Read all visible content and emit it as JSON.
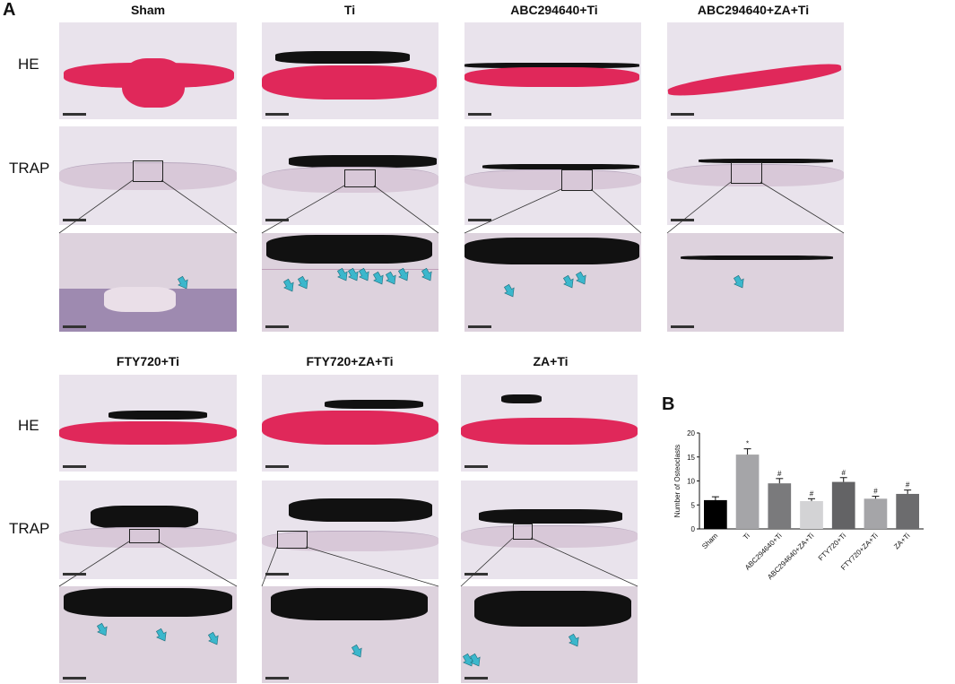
{
  "panel_a_letter": "A",
  "panel_b_letter": "B",
  "top_row_titles": [
    "Sham",
    "Ti",
    "ABC294640+Ti",
    "ABC294640+ZA+Ti"
  ],
  "bottom_row_titles": [
    "FTY720+Ti",
    "FTY720+ZA+Ti",
    "ZA+Ti"
  ],
  "row_labels": {
    "he_top": "HE",
    "trap_top": "TRAP",
    "he_bottom": "HE",
    "trap_bottom": "TRAP"
  },
  "colors": {
    "he_stain": "#e0285a",
    "trap_bg": "#e9e3ec",
    "arrow": "#3bb7cc"
  },
  "chart_data": {
    "type": "bar",
    "ylabel": "Number of Osteoclasts",
    "ylim": [
      0,
      20
    ],
    "yticks": [
      0,
      5,
      10,
      15,
      20
    ],
    "categories": [
      "Sham",
      "Ti",
      "ABC294640+Ti",
      "ABC294640+ZA+Ti",
      "FTY720+Ti",
      "FTY720+ZA+Ti",
      "ZA+Ti"
    ],
    "values": [
      6.0,
      15.5,
      9.5,
      5.8,
      9.8,
      6.3,
      7.3
    ],
    "errors": [
      0.7,
      1.2,
      1.0,
      0.5,
      0.9,
      0.5,
      0.8
    ],
    "bar_colors": [
      "#000000",
      "#a5a5a8",
      "#7a7a7c",
      "#d3d3d5",
      "#636365",
      "#a5a5a8",
      "#6c6c6e"
    ],
    "annotations": [
      "",
      "*",
      "#",
      "#",
      "#",
      "#",
      "#"
    ]
  }
}
